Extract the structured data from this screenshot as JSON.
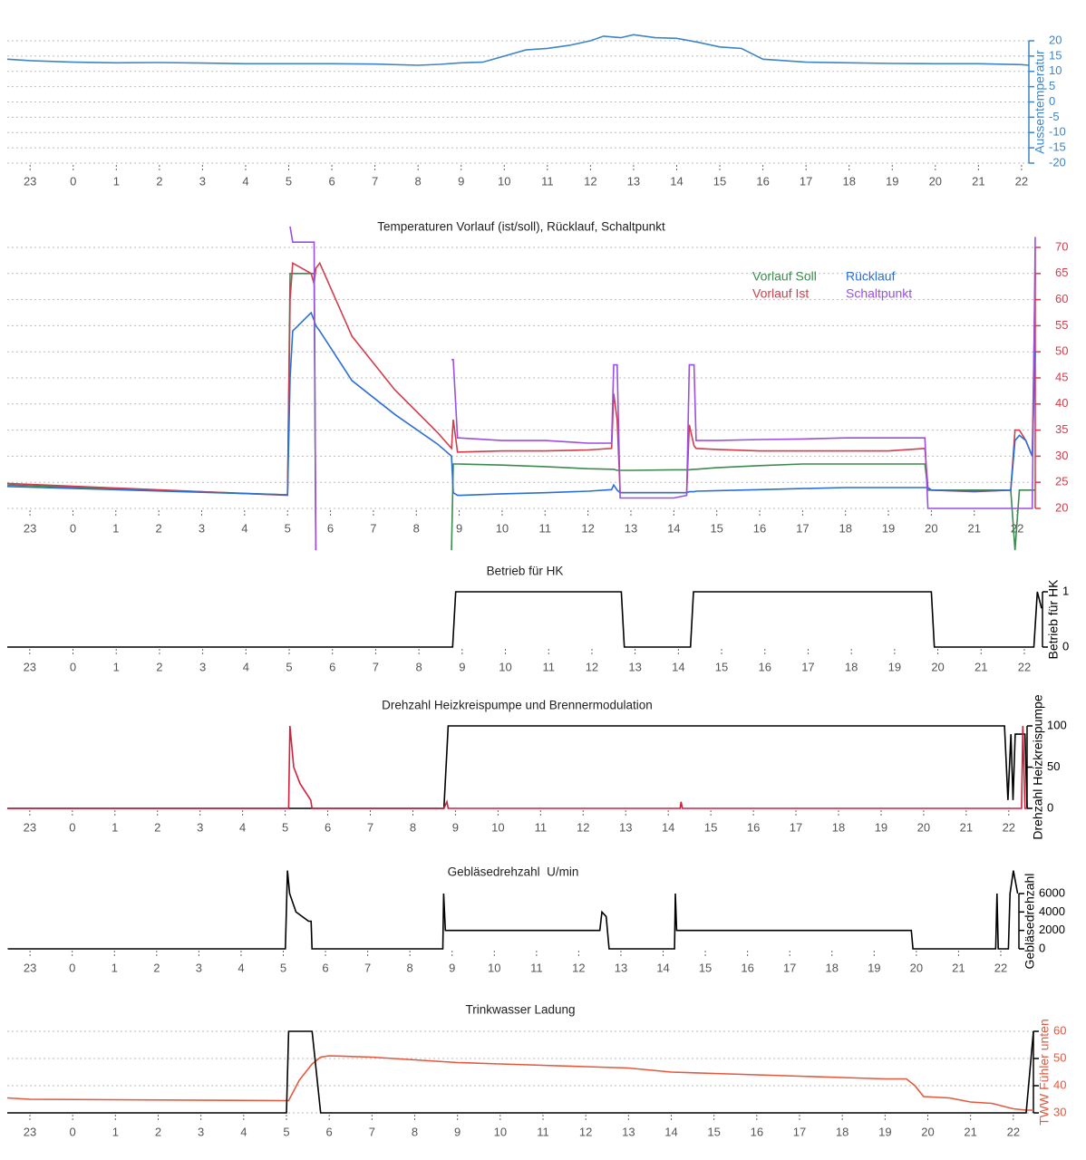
{
  "chart_data": [
    {
      "type": "line",
      "ylabel": "Aussentemperatur",
      "axis_color": "#3d85c6",
      "grid": true,
      "xlim": [
        -1.53,
        22.17
      ],
      "ylim": [
        -20,
        20
      ],
      "yticks": [
        -20,
        -15,
        -10,
        -5,
        0,
        5,
        10,
        15,
        20
      ],
      "xticks": [
        {
          "value": -1,
          "label": "23"
        },
        0,
        1,
        2,
        3,
        4,
        5,
        6,
        7,
        8,
        9,
        10,
        11,
        12,
        13,
        14,
        15,
        16,
        17,
        18,
        19,
        20,
        21,
        22
      ],
      "x": [
        -1.53,
        -1,
        0,
        1,
        2,
        3,
        4,
        5,
        6,
        7,
        8,
        8.5,
        9,
        9.5,
        10,
        10.5,
        11,
        11.5,
        12,
        12.3,
        12.7,
        13,
        13.5,
        14,
        14.5,
        15,
        15.5,
        16,
        17,
        18,
        19,
        20,
        21,
        22,
        22.17
      ],
      "series": [
        {
          "color": "#3d85c6",
          "values": [
            14,
            13.5,
            13,
            12.8,
            12.9,
            12.7,
            12.5,
            12.5,
            12.5,
            12.4,
            12,
            12.3,
            12.8,
            13,
            15,
            17,
            17.5,
            18.5,
            20,
            21.5,
            21,
            22,
            21,
            20.8,
            19.5,
            18,
            17.5,
            14,
            13,
            12.8,
            12.6,
            12.5,
            12.5,
            12.2,
            12
          ]
        }
      ]
    },
    {
      "type": "line",
      "title": "Temperaturen Vorlauf (ist/soll), Rücklauf, Schaltpunkt",
      "axis_color": "#d23c4b",
      "grid": true,
      "legend": "top-right",
      "xlim": [
        -1.53,
        22.42
      ],
      "ylim": [
        20,
        70
      ],
      "yticks": [
        20,
        25,
        30,
        35,
        40,
        45,
        50,
        55,
        60,
        65,
        70
      ],
      "xticks": [
        {
          "value": -1,
          "label": "23"
        },
        0,
        1,
        2,
        3,
        4,
        5,
        6,
        7,
        8,
        9,
        10,
        11,
        12,
        13,
        14,
        15,
        16,
        17,
        18,
        19,
        20,
        21,
        22
      ],
      "x": [
        -1.53,
        5.0,
        5.06,
        5.12,
        5.55,
        5.62,
        5.66,
        5.75,
        6.5,
        7.5,
        8.5,
        8.82,
        8.86,
        8.96,
        9.0,
        10,
        11,
        12,
        12.55,
        12.6,
        12.68,
        12.75,
        13,
        14,
        14.3,
        14.36,
        14.47,
        14.52,
        15,
        16,
        17,
        18,
        19,
        19.85,
        19.92,
        20,
        21,
        21.85,
        21.95,
        22.05,
        22.2,
        22.35,
        22.42
      ],
      "series": [
        {
          "name": "Vorlauf Soll",
          "color": "#3c8a4e",
          "values": [
            24.5,
            22.6,
            65,
            65,
            65,
            65,
            12,
            null,
            null,
            null,
            null,
            12,
            28.5,
            28.5,
            28.5,
            28.3,
            28,
            27.6,
            27.5,
            27.5,
            27.3,
            27.3,
            27.3,
            27.4,
            27.4,
            27.4,
            27.5,
            27.5,
            27.8,
            28.2,
            28.5,
            28.5,
            28.5,
            28.5,
            23.5,
            23.5,
            23.5,
            23.5,
            12,
            23.5,
            23.5,
            23.5,
            23.5
          ]
        },
        {
          "name": "Vorlauf Ist",
          "color": "#d23c4b",
          "values": [
            24.8,
            22.5,
            60,
            67,
            65,
            63,
            66,
            67,
            53,
            42.7,
            34.5,
            31.5,
            37,
            30.8,
            30.8,
            31,
            31,
            31.2,
            31.5,
            42,
            37,
            23,
            23,
            23,
            23,
            36,
            32,
            31.5,
            31.3,
            31,
            31,
            31,
            31,
            31.5,
            24,
            23.5,
            23.2,
            23.5,
            35,
            35,
            33,
            30,
            65
          ]
        },
        {
          "name": "Rücklauf",
          "color": "#2a6fd6",
          "values": [
            24.2,
            22.6,
            45,
            54,
            57.5,
            56,
            55,
            54,
            44.5,
            38,
            32.3,
            30,
            23,
            22.5,
            22.5,
            22.8,
            23,
            23.3,
            23.6,
            24.5,
            23.5,
            23,
            23,
            23,
            23,
            23.2,
            23.2,
            23.3,
            23.4,
            23.6,
            23.8,
            24,
            24,
            24,
            24,
            23.5,
            23.3,
            23.5,
            33,
            34,
            33,
            30,
            50
          ]
        },
        {
          "name": "Schaltpunkt",
          "color": "#9b4fe0",
          "values": [
            null,
            null,
            74,
            71,
            71,
            71,
            12,
            null,
            null,
            null,
            null,
            48.5,
            48.5,
            33.5,
            33.5,
            33,
            33,
            32.5,
            32.5,
            47.5,
            47.5,
            22,
            22,
            22,
            22.5,
            47.5,
            47.5,
            33,
            33,
            33.2,
            33.3,
            33.5,
            33.5,
            33.5,
            20,
            20,
            20,
            20,
            20,
            20,
            20,
            20,
            72
          ]
        }
      ]
    },
    {
      "type": "line",
      "title": "Betrieb für HK",
      "ylabel": "Betrieb für HK",
      "axis_color": "#000000",
      "grid": false,
      "xlim": [
        -1.52,
        22.42
      ],
      "ylim": [
        0,
        1
      ],
      "yticks": [
        0,
        1
      ],
      "xticks": [
        {
          "value": -1,
          "label": "23"
        },
        0,
        1,
        2,
        3,
        4,
        5,
        6,
        7,
        8,
        9,
        10,
        11,
        12,
        13,
        14,
        15,
        16,
        17,
        18,
        19,
        20,
        21,
        22
      ],
      "x": [
        -1.52,
        8.78,
        8.85,
        12.68,
        12.75,
        14.28,
        14.35,
        19.85,
        19.92,
        22.22,
        22.3,
        22.4
      ],
      "series": [
        {
          "color": "#000000",
          "values": [
            0,
            0,
            1,
            1,
            0,
            0,
            1,
            1,
            0,
            0,
            1,
            0.7
          ]
        }
      ]
    },
    {
      "type": "line",
      "title": "Drehzahl Heizkreispumpe und Brennermodulation",
      "ylabel": "Drehzahl Heizkreispumpe",
      "axis_color": "#000000",
      "grid": false,
      "xlim": [
        -1.53,
        22.43
      ],
      "ylim": [
        0,
        100
      ],
      "yticks": [
        0,
        50,
        100
      ],
      "xticks": [
        {
          "value": -1,
          "label": "23"
        },
        0,
        1,
        2,
        3,
        4,
        5,
        6,
        7,
        8,
        9,
        10,
        11,
        12,
        13,
        14,
        15,
        16,
        17,
        18,
        19,
        20,
        21,
        22
      ],
      "x": [
        -1.53,
        5.08,
        5.11,
        5.2,
        5.35,
        5.6,
        5.63,
        8.73,
        8.8,
        8.83,
        8.88,
        14.28,
        14.3,
        14.33,
        21.9,
        21.98,
        22.05,
        22.1,
        22.15,
        22.3,
        22.33,
        22.38,
        22.43
      ],
      "series": [
        {
          "color": "#000000",
          "values": [
            0,
            0,
            0,
            0,
            0,
            0,
            0,
            0,
            70,
            100,
            100,
            100,
            100,
            100,
            100,
            10,
            90,
            10,
            90,
            90,
            90,
            90,
            0
          ]
        },
        {
          "color": "#d2213c",
          "values": [
            0,
            0,
            100,
            50,
            30,
            10,
            0,
            0,
            8,
            0,
            0,
            0,
            8,
            0,
            0,
            0,
            0,
            0,
            0,
            0,
            100,
            0,
            0
          ]
        }
      ]
    },
    {
      "type": "line",
      "title": "Gebläsedrehzahl  U/min",
      "ylabel": "Gebläsedrehzahl",
      "axis_color": "#000000",
      "grid": false,
      "xlim": [
        -1.54,
        22.43
      ],
      "ylim": [
        0,
        6000
      ],
      "yticks": [
        0,
        2000,
        4000,
        6000
      ],
      "xticks": [
        {
          "value": -1,
          "label": "23"
        },
        0,
        1,
        2,
        3,
        4,
        5,
        6,
        7,
        8,
        9,
        10,
        11,
        12,
        13,
        14,
        15,
        16,
        17,
        18,
        19,
        20,
        21,
        22
      ],
      "x": [
        -1.53,
        5.05,
        5.1,
        5.15,
        5.3,
        5.6,
        5.66,
        5.68,
        8.78,
        8.8,
        8.84,
        12.45,
        12.5,
        12.55,
        12.65,
        12.72,
        14.27,
        14.29,
        14.32,
        19.88,
        19.92,
        21.88,
        21.91,
        21.94,
        22.18,
        22.22,
        22.3,
        22.4
      ],
      "series": [
        {
          "color": "#000000",
          "values": [
            0,
            0,
            8500,
            6000,
            4000,
            3000,
            3000,
            0,
            0,
            6000,
            2000,
            2000,
            2000,
            4000,
            3500,
            0,
            0,
            6000,
            2000,
            2000,
            0,
            0,
            6000,
            0,
            0,
            6000,
            8500,
            6000
          ]
        }
      ]
    },
    {
      "type": "line",
      "title": "Trinkwasser Ladung",
      "ylabel": "TWW Fühler unten",
      "axis_color": "#e4583e",
      "grid": true,
      "xlim": [
        -1.53,
        22.47
      ],
      "ylim": [
        30,
        60
      ],
      "yticks": [
        30,
        40,
        50,
        60
      ],
      "xticks": [
        {
          "value": -1,
          "label": "23"
        },
        0,
        1,
        2,
        3,
        4,
        5,
        6,
        7,
        8,
        9,
        10,
        11,
        12,
        13,
        14,
        15,
        16,
        17,
        18,
        19,
        20,
        21,
        22
      ],
      "x": [
        -1.53,
        -1,
        5,
        5.05,
        5.3,
        5.6,
        5.8,
        6,
        7,
        8,
        9,
        10,
        11,
        12,
        13,
        14,
        15,
        16,
        17,
        18,
        19,
        19.5,
        19.7,
        19.9,
        20.5,
        21,
        21.5,
        22,
        22.3,
        22.47
      ],
      "series": [
        {
          "color": "#e4583e",
          "values": [
            35.5,
            35,
            34.5,
            34.5,
            42,
            48,
            50.5,
            51,
            50.5,
            49.5,
            48.5,
            48,
            47.5,
            47,
            46.5,
            45,
            44.5,
            44,
            43.5,
            43,
            42.5,
            42.5,
            40,
            36,
            35.5,
            34,
            33.5,
            31.5,
            31,
            31
          ]
        },
        {
          "color": "#000000",
          "values": [
            30,
            30,
            30,
            60,
            60,
            60,
            30,
            30,
            30,
            30,
            30,
            30,
            30,
            30,
            30,
            30,
            30,
            30,
            30,
            30,
            30,
            30,
            30,
            30,
            30,
            30,
            30,
            30,
            30,
            60
          ]
        }
      ]
    }
  ]
}
